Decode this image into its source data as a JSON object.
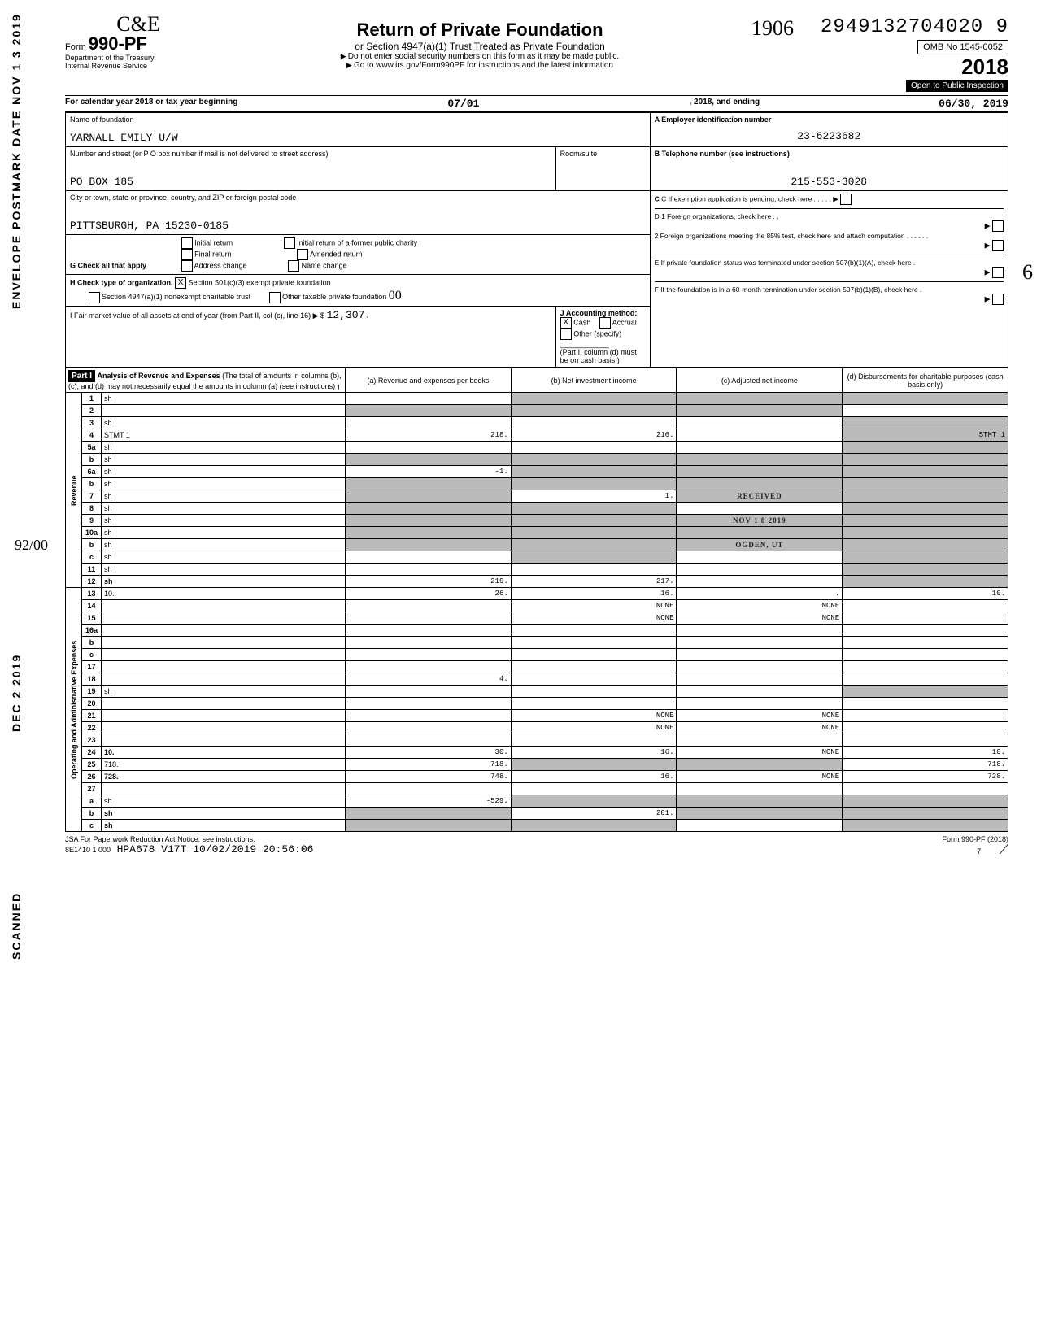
{
  "ocr_number": "2949132704020  9",
  "form_label": "Form",
  "form_num": "990-PF",
  "logo_script": "C&E",
  "dept1": "Department of the Treasury",
  "dept2": "Internal Revenue Service",
  "title": "Return of Private Foundation",
  "subtitle": "or Section 4947(a)(1) Trust Treated as Private Foundation",
  "warn1": "Do not enter social security numbers on this form as it may be made public.",
  "warn2": "Go to www.irs.gov/Form990PF for instructions and the latest information",
  "hand_year_top": "1906",
  "omb": "OMB No 1545-0052",
  "tax_year": "2018",
  "inspect": "Open to Public Inspection",
  "cal_line_a": "For calendar year 2018 or tax year beginning",
  "begin_date": "07/01",
  "mid": ", 2018, and ending",
  "end_date": "06/30, 2019",
  "name_label": "Name of foundation",
  "name": "YARNALL EMILY U/W",
  "addr_label": "Number and street (or P O  box number if mail is not delivered to street address)",
  "addr": "PO BOX 185",
  "room_label": "Room/suite",
  "city_label": "City or town, state or province, country, and ZIP or foreign postal code",
  "city": "PITTSBURGH, PA 15230-0185",
  "a_label": "A  Employer identification number",
  "ein": "23-6223682",
  "b_label": "B  Telephone number (see instructions)",
  "phone": "215-553-3028",
  "c_label": "C  If exemption application is pending, check here",
  "d1": "D 1 Foreign organizations, check here . .",
  "d2": "2 Foreign organizations meeting the 85% test, check here and attach computation  . . . . . .",
  "e": "E  If private foundation status was terminated under section 507(b)(1)(A), check here  .",
  "f": "F  If the foundation is in a 60-month termination under section 507(b)(1)(B), check here  .",
  "g_label": "G  Check all that apply",
  "g_opts": [
    "Initial return",
    "Final return",
    "Address change",
    "Initial return of a former public charity",
    "Amended return",
    "Name change"
  ],
  "h_label": "H  Check type of organization.",
  "h_501": "Section 501(c)(3) exempt private foundation",
  "h_4947": "Section 4947(a)(1) nonexempt charitable trust",
  "h_other": "Other taxable private foundation",
  "h_hand": "00",
  "i_label": "I  Fair market value of all assets at end of year (from Part II, col (c), line 16) ▶ $",
  "i_val": "12,307.",
  "j_label": "J Accounting method:",
  "j_cash": "Cash",
  "j_accr": "Accrual",
  "j_other": "Other (specify)",
  "j_note": "(Part I, column (d) must be on cash basis )",
  "part1": "Part I",
  "part1_title": "Analysis of Revenue and Expenses",
  "part1_note": "(The total of amounts in columns (b), (c), and (d) may not necessarily equal the amounts in column (a) (see instructions) )",
  "col_a": "(a) Revenue and expenses per books",
  "col_b": "(b) Net investment income",
  "col_c": "(c) Adjusted net income",
  "col_d": "(d) Disbursements for charitable purposes (cash basis only)",
  "side_group_rev": "Revenue",
  "side_group_exp": "Operating and Administrative Expenses",
  "side_a": "ENVELOPE POSTMARK DATE  NOV 1 3 2019",
  "side_b": "DEC  2 2019",
  "side_c": "SCANNED",
  "frac": "92/00",
  "rows": [
    {
      "n": "1",
      "d": "sh",
      "a": "",
      "b": "sh",
      "c": "sh"
    },
    {
      "n": "2",
      "d": "",
      "a": "sh",
      "b": "sh",
      "c": "sh"
    },
    {
      "n": "3",
      "d": "sh",
      "a": "",
      "b": "",
      "c": ""
    },
    {
      "n": "4",
      "d": "STMT 1",
      "a": "218.",
      "b": "216.",
      "c": "",
      "dsh": true
    },
    {
      "n": "5a",
      "d": "sh",
      "a": "",
      "b": "",
      "c": ""
    },
    {
      "n": "b",
      "d": "sh",
      "a": "sh",
      "b": "sh",
      "c": "sh"
    },
    {
      "n": "6a",
      "d": "sh",
      "a": "-1.",
      "b": "sh",
      "c": "sh"
    },
    {
      "n": "b",
      "d": "sh",
      "a": "sh",
      "b": "sh",
      "c": "sh"
    },
    {
      "n": "7",
      "d": "sh",
      "a": "sh",
      "b": "1.",
      "c": "RECEIVED",
      "csh": true
    },
    {
      "n": "8",
      "d": "sh",
      "a": "sh",
      "b": "sh",
      "c": ""
    },
    {
      "n": "9",
      "d": "sh",
      "a": "sh",
      "b": "sh",
      "c": "NOV 1 8  2019",
      "csh": true
    },
    {
      "n": "10a",
      "d": "sh",
      "a": "sh",
      "b": "sh",
      "c": "sh"
    },
    {
      "n": "b",
      "d": "sh",
      "a": "sh",
      "b": "sh",
      "c": "OGDEN, UT",
      "csh": true
    },
    {
      "n": "c",
      "d": "sh",
      "a": "",
      "b": "sh",
      "c": ""
    },
    {
      "n": "11",
      "d": "sh",
      "a": "",
      "b": "",
      "c": ""
    },
    {
      "n": "12",
      "d": "sh",
      "a": "219.",
      "b": "217.",
      "c": "",
      "bold": true
    },
    {
      "n": "13",
      "d": "10.",
      "a": "26.",
      "b": "16.",
      "c": "."
    },
    {
      "n": "14",
      "d": "",
      "a": "",
      "b": "NONE",
      "c": "NONE"
    },
    {
      "n": "15",
      "d": "",
      "a": "",
      "b": "NONE",
      "c": "NONE"
    },
    {
      "n": "16a",
      "d": "",
      "a": "",
      "b": "",
      "c": ""
    },
    {
      "n": "b",
      "d": "",
      "a": "",
      "b": "",
      "c": ""
    },
    {
      "n": "c",
      "d": "",
      "a": "",
      "b": "",
      "c": ""
    },
    {
      "n": "17",
      "d": "",
      "a": "",
      "b": "",
      "c": ""
    },
    {
      "n": "18",
      "d": "",
      "a": "4.",
      "b": "",
      "c": ""
    },
    {
      "n": "19",
      "d": "sh",
      "a": "",
      "b": "",
      "c": ""
    },
    {
      "n": "20",
      "d": "",
      "a": "",
      "b": "",
      "c": ""
    },
    {
      "n": "21",
      "d": "",
      "a": "",
      "b": "NONE",
      "c": "NONE"
    },
    {
      "n": "22",
      "d": "",
      "a": "",
      "b": "NONE",
      "c": "NONE"
    },
    {
      "n": "23",
      "d": "",
      "a": "",
      "b": "",
      "c": ""
    },
    {
      "n": "24",
      "d": "10.",
      "a": "30.",
      "b": "16.",
      "c": "NONE",
      "bold": true
    },
    {
      "n": "25",
      "d": "718.",
      "a": "718.",
      "b": "sh",
      "c": "sh"
    },
    {
      "n": "26",
      "d": "728.",
      "a": "748.",
      "b": "16.",
      "c": "NONE",
      "bold": true
    },
    {
      "n": "27",
      "d": "",
      "a": "",
      "b": "",
      "c": ""
    },
    {
      "n": "a",
      "d": "sh",
      "a": "-529.",
      "b": "sh",
      "c": "sh"
    },
    {
      "n": "b",
      "d": "sh",
      "a": "sh",
      "b": "201.",
      "c": "sh",
      "bold": true
    },
    {
      "n": "c",
      "d": "sh",
      "a": "sh",
      "b": "sh",
      "c": "",
      "bold": true
    }
  ],
  "foot_l": "JSA  For Paperwork Reduction Act Notice, see instructions.",
  "foot_code": "8E1410 1 000",
  "foot_stamp": "HPA678 V17T 10/02/2019 20:56:06",
  "foot_r": "Form 990-PF (2018)",
  "foot_page": "7",
  "hand_margin": "6"
}
